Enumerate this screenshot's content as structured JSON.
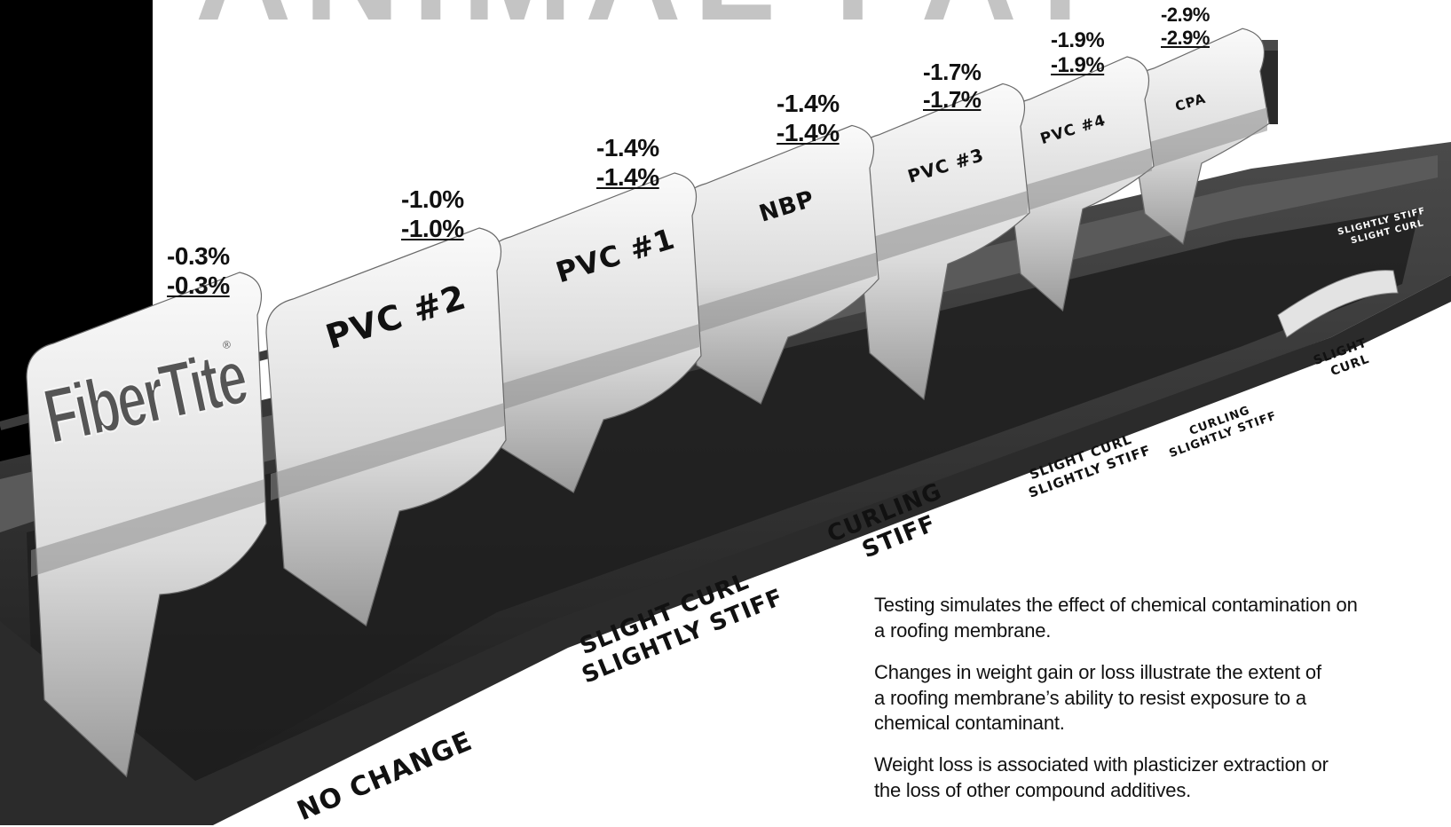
{
  "header_fragment": "ANIMAL FAT",
  "brand": {
    "logo_text": "FiberTite",
    "reg_mark": "®"
  },
  "materials": [
    {
      "name": "",
      "change_top": "-0.3%",
      "change_bottom": "-0.3%",
      "result": [
        "NO CHANGE"
      ]
    },
    {
      "name": "PVC #2",
      "change_top": "-1.0%",
      "change_bottom": "-1.0%",
      "result": [
        "SLIGHT CURL",
        "SLIGHTLY STIFF"
      ]
    },
    {
      "name": "PVC #1",
      "change_top": "-1.4%",
      "change_bottom": "-1.4%",
      "result": [
        "CURLING",
        "STIFF"
      ]
    },
    {
      "name": "NBP",
      "change_top": "-1.4%",
      "change_bottom": "-1.4%",
      "result": []
    },
    {
      "name": "PVC #3",
      "change_top": "-1.7%",
      "change_bottom": "-1.7%",
      "result": [
        "SLIGHT CURL",
        "SLIGHTLY STIFF"
      ]
    },
    {
      "name": "PVC #4",
      "change_top": "-1.9%",
      "change_bottom": "-1.9%",
      "result": [
        "CURLING",
        "SLIGHTLY STIFF"
      ]
    },
    {
      "name": "CPA",
      "change_top": "-2.9%",
      "change_bottom": "-2.9%",
      "result": [
        "SLIGHT",
        "CURL"
      ]
    }
  ],
  "side_result": [
    "SLIGHTLY STIFF",
    "SLIGHT CURL"
  ],
  "description": [
    "Testing simulates the effect of chemical contamination on a roofing membrane.",
    "Changes in weight gain or loss illustrate the extent of a roofing membrane’s ability to resist exposure to a chemical contaminant.",
    "Weight loss is associated with plasticizer extraction or the loss of other compound additives."
  ],
  "colors": {
    "sidebar": "#000000",
    "tray": "#2a2a2a",
    "membrane_light": "#eeeeee",
    "membrane_shadow": "#7a7a7a",
    "header": "#bdbdbd"
  }
}
